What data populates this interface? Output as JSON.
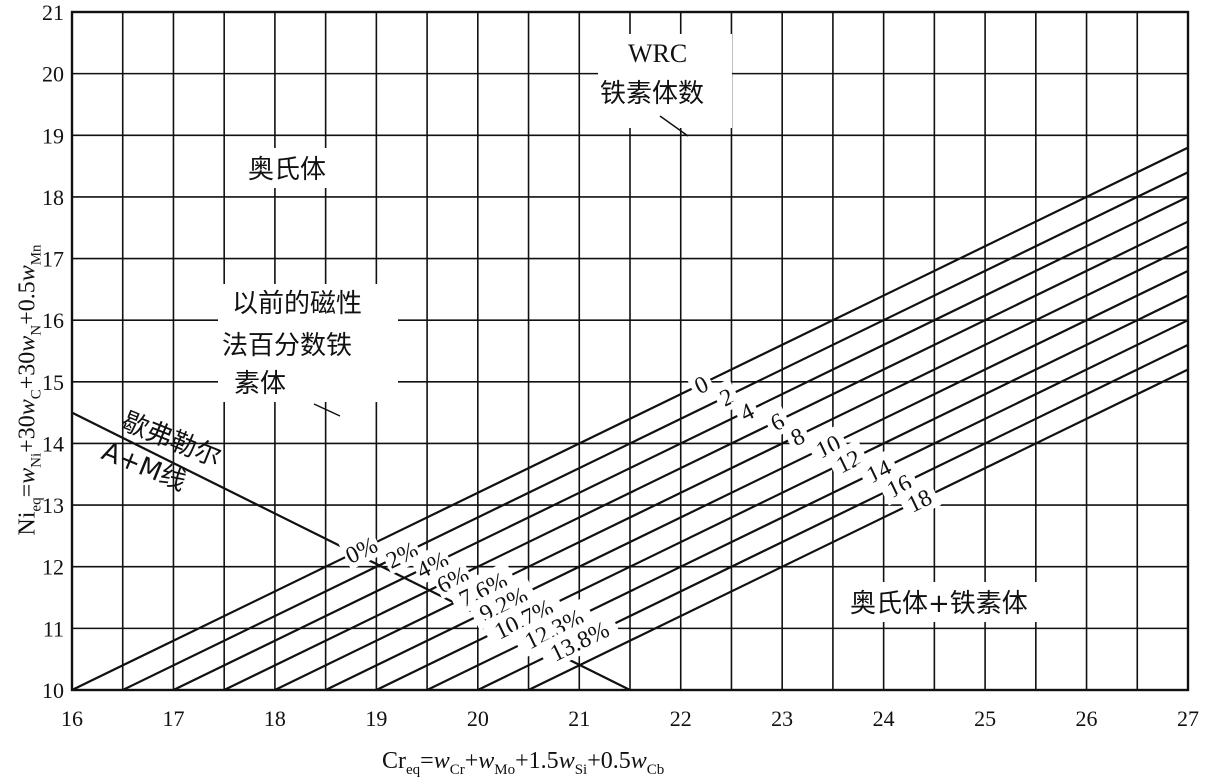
{
  "chart_data": {
    "type": "line",
    "xlim": [
      16,
      27
    ],
    "ylim": [
      10,
      21
    ],
    "x_ticks": [
      "16",
      "17",
      "18",
      "19",
      "20",
      "21",
      "22",
      "23",
      "24",
      "25",
      "26",
      "27"
    ],
    "y_ticks": [
      "10",
      "11",
      "12",
      "13",
      "14",
      "15",
      "16",
      "17",
      "18",
      "19",
      "20",
      "21"
    ],
    "grid": true,
    "xlabel": {
      "parts": [
        {
          "t": "Cr",
          "s": "n"
        },
        {
          "t": "eq",
          "s": "sub"
        },
        {
          "t": "=",
          "s": "n"
        },
        {
          "t": "w",
          "s": "i"
        },
        {
          "t": "Cr",
          "s": "sub"
        },
        {
          "t": "+",
          "s": "n"
        },
        {
          "t": "w",
          "s": "i"
        },
        {
          "t": "Mo",
          "s": "sub"
        },
        {
          "t": "+1.5",
          "s": "n"
        },
        {
          "t": "w",
          "s": "i"
        },
        {
          "t": "Si",
          "s": "sub"
        },
        {
          "t": "+0.5",
          "s": "n"
        },
        {
          "t": "w",
          "s": "i"
        },
        {
          "t": "Cb",
          "s": "sub"
        }
      ]
    },
    "ylabel": {
      "parts": [
        {
          "t": "Ni",
          "s": "n"
        },
        {
          "t": "eq",
          "s": "sub"
        },
        {
          "t": "=",
          "s": "n"
        },
        {
          "t": "w",
          "s": "i"
        },
        {
          "t": "Ni",
          "s": "sub"
        },
        {
          "t": "+30",
          "s": "n"
        },
        {
          "t": "w",
          "s": "i"
        },
        {
          "t": "C",
          "s": "sub"
        },
        {
          "t": "+30",
          "s": "n"
        },
        {
          "t": "w",
          "s": "i"
        },
        {
          "t": "N",
          "s": "sub"
        },
        {
          "t": "+0.5",
          "s": "n"
        },
        {
          "t": "w",
          "s": "i"
        },
        {
          "t": "Mn",
          "s": "sub"
        }
      ]
    },
    "slope": 0.8,
    "iso_ferrite_lines": [
      {
        "fn": "0",
        "pct": "0%",
        "x_at_y10": 16.0
      },
      {
        "fn": "2",
        "pct": "2%",
        "x_at_y10": 16.5
      },
      {
        "fn": "4",
        "pct": "4%",
        "x_at_y10": 17.0
      },
      {
        "fn": "6",
        "pct": "6%",
        "x_at_y10": 17.5
      },
      {
        "fn": "8",
        "pct": "7.6%",
        "x_at_y10": 18.0
      },
      {
        "fn": "10",
        "pct": "9.2%",
        "x_at_y10": 18.5
      },
      {
        "fn": "12",
        "pct": "10.7%",
        "x_at_y10": 19.0
      },
      {
        "fn": "14",
        "pct": "12.3%",
        "x_at_y10": 19.5
      },
      {
        "fn": "16",
        "pct": "13.8%",
        "x_at_y10": 20.0
      },
      {
        "fn": "18",
        "pct": "",
        "x_at_y10": 20.5
      }
    ],
    "am_line": {
      "label1": "歇弗勒尔",
      "label2": "A+M线",
      "points": [
        [
          16,
          14.5
        ],
        [
          21.5,
          10
        ]
      ]
    },
    "annotations": {
      "austenite": "奥氏体",
      "austenite_ferrite": "奥氏体+铁素体",
      "wrc_title": "WRC",
      "wrc_subtitle": "铁素体数",
      "prev_method": [
        "以前的磁性",
        "法百分数铁",
        "素体"
      ]
    }
  }
}
